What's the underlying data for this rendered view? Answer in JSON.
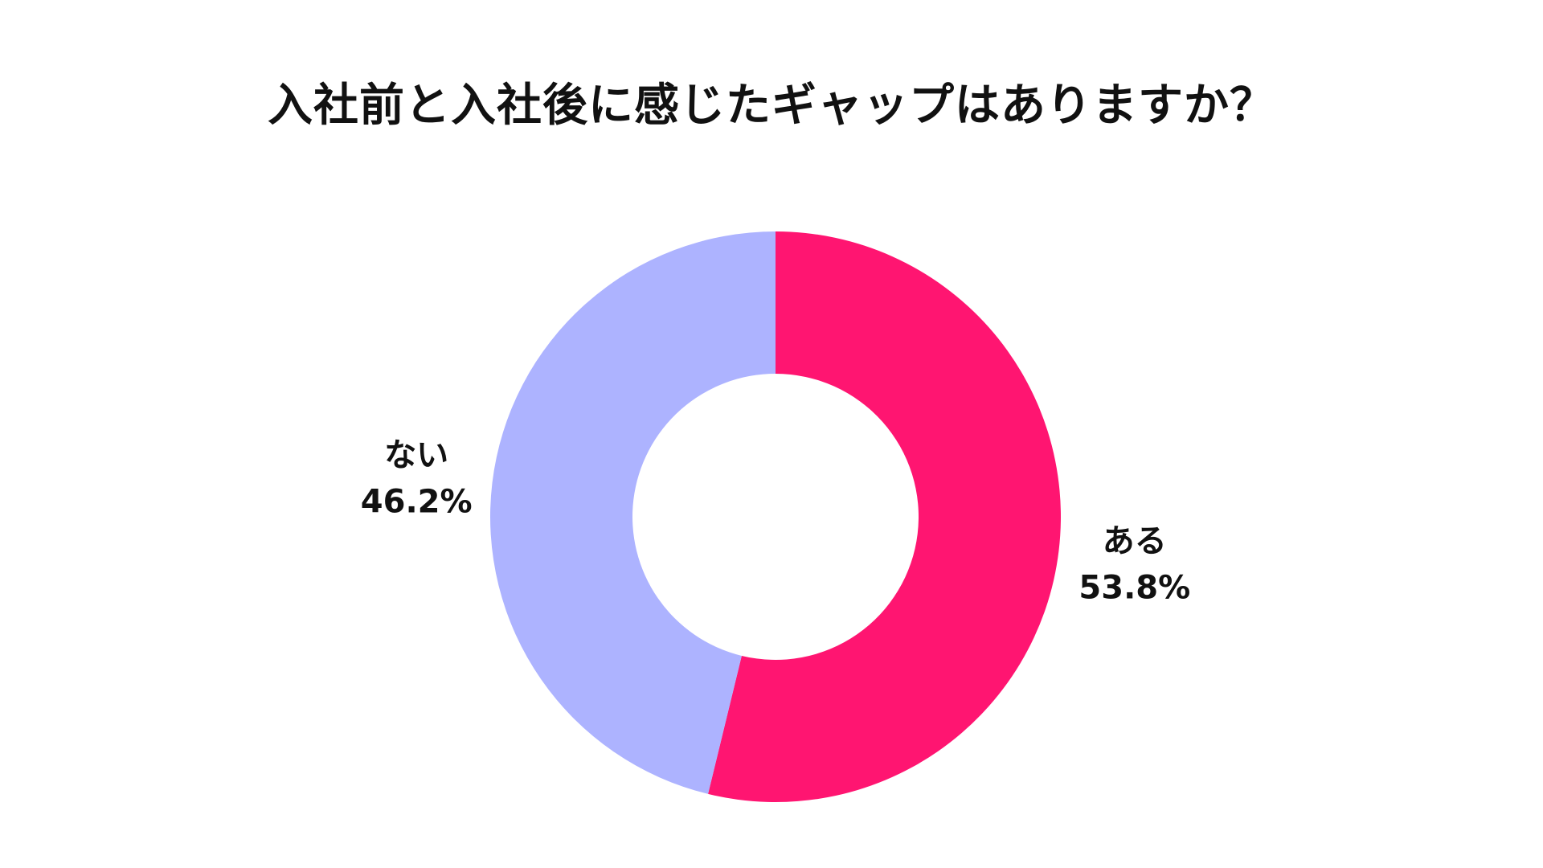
{
  "chart_data": {
    "type": "pie",
    "donut": true,
    "title": "入社前と入社後に感じたギャップはありますか？",
    "start": "top",
    "direction": "clockwise",
    "slices": [
      {
        "label": "ある",
        "value": 53.8,
        "value_label": "53.8%",
        "color": "#FF1571"
      },
      {
        "label": "ない",
        "value": 46.2,
        "value_label": "46.2%",
        "color": "#ADB3FF"
      }
    ],
    "legend": "none",
    "labels": "outside"
  }
}
